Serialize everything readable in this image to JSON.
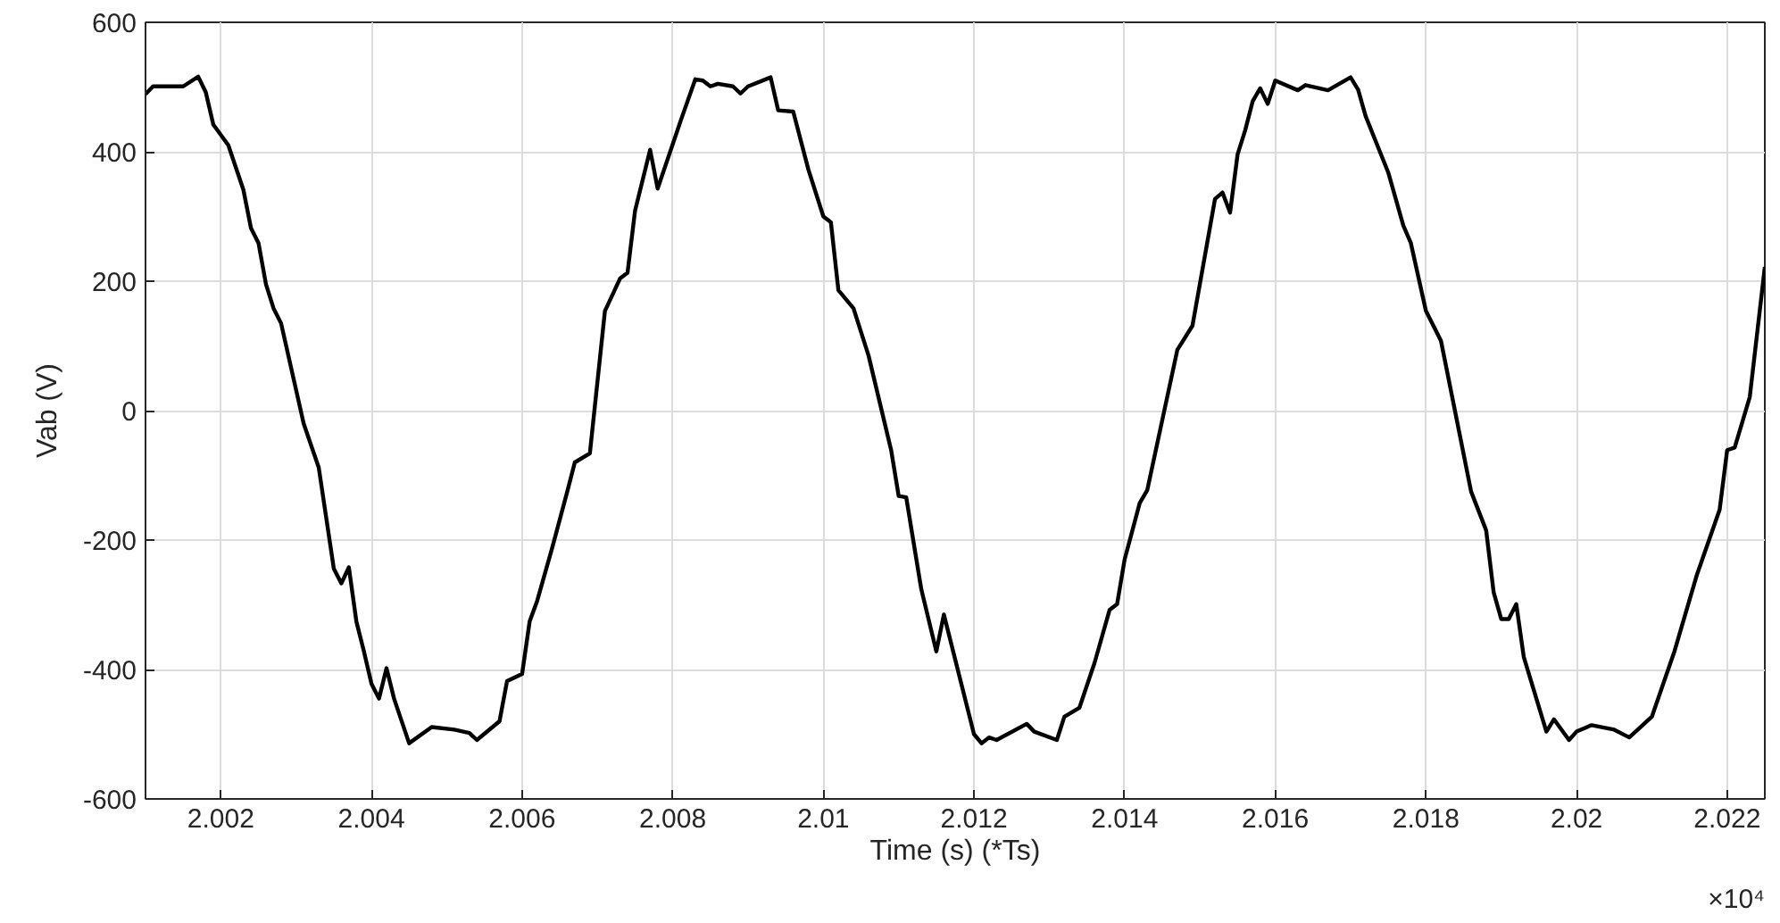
{
  "chart_data": {
    "type": "line",
    "xlabel": "Time (s) (*Ts)",
    "ylabel": "Vab (V)",
    "annotations": [
      "×10⁴"
    ],
    "xlim": [
      2.001,
      2.0225
    ],
    "ylim": [
      -600,
      600
    ],
    "xticks": [
      2.002,
      2.004,
      2.006,
      2.008,
      2.01,
      2.012,
      2.014,
      2.016,
      2.018,
      2.02,
      2.022
    ],
    "yticks": [
      -600,
      -400,
      -200,
      0,
      200,
      400,
      600
    ],
    "grid": true,
    "marker": "none",
    "line_style": "solid",
    "series": [
      {
        "color": "#000000",
        "x": [
          2.001,
          2.0011,
          2.0015,
          2.0017,
          2.0018,
          2.0019,
          2.0021,
          2.0023,
          2.0024,
          2.0025,
          2.0026,
          2.0027,
          2.0028,
          2.0031,
          2.0033,
          2.0035,
          2.0036,
          2.0037,
          2.0038,
          2.0039,
          2.004,
          2.0041,
          2.0042,
          2.0043,
          2.0045,
          2.0048,
          2.0051,
          2.0053,
          2.0054,
          2.0057,
          2.0058,
          2.006,
          2.0061,
          2.0062,
          2.0064,
          2.0066,
          2.0067,
          2.0069,
          2.0071,
          2.0073,
          2.0074,
          2.0075,
          2.0077,
          2.0078,
          2.0081,
          2.0083,
          2.0084,
          2.0085,
          2.0086,
          2.0088,
          2.0089,
          2.009,
          2.0093,
          2.0094,
          2.0096,
          2.0098,
          2.01,
          2.0101,
          2.0102,
          2.0104,
          2.0106,
          2.0109,
          2.011,
          2.0111,
          2.0113,
          2.0115,
          2.0116,
          2.012,
          2.0121,
          2.0122,
          2.0123,
          2.0127,
          2.0128,
          2.0131,
          2.0132,
          2.0134,
          2.0136,
          2.0138,
          2.0139,
          2.014,
          2.0142,
          2.0143,
          2.0147,
          2.0149,
          2.0152,
          2.0153,
          2.0154,
          2.0155,
          2.0156,
          2.0157,
          2.0158,
          2.0159,
          2.016,
          2.0163,
          2.0164,
          2.0167,
          2.017,
          2.0171,
          2.0172,
          2.0175,
          2.0177,
          2.0178,
          2.018,
          2.0182,
          2.0186,
          2.0188,
          2.0189,
          2.019,
          2.0191,
          2.0192,
          2.0193,
          2.0196,
          2.0197,
          2.0199,
          2.02,
          2.0202,
          2.0205,
          2.0207,
          2.021,
          2.0213,
          2.0216,
          2.0219,
          2.022,
          2.0221,
          2.0223,
          2.0225
        ],
        "values": [
          489,
          501,
          501,
          516,
          492,
          442,
          410,
          341,
          282,
          259,
          195,
          158,
          135,
          -20,
          -88,
          -244,
          -267,
          -242,
          -326,
          -372,
          -422,
          -445,
          -398,
          -445,
          -514,
          -489,
          -493,
          -498,
          -509,
          -480,
          -418,
          -407,
          -326,
          -294,
          -212,
          -125,
          -80,
          -66,
          154,
          204,
          213,
          309,
          403,
          343,
          446,
          512,
          510,
          501,
          505,
          501,
          490,
          501,
          515,
          464,
          462,
          373,
          300,
          291,
          186,
          158,
          85,
          -61,
          -132,
          -134,
          -276,
          -372,
          -315,
          -500,
          -514,
          -505,
          -509,
          -484,
          -496,
          -509,
          -473,
          -459,
          -390,
          -308,
          -299,
          -230,
          -143,
          -123,
          94,
          131,
          327,
          337,
          306,
          396,
          433,
          478,
          498,
          474,
          510,
          495,
          503,
          495,
          515,
          496,
          455,
          368,
          286,
          259,
          154,
          108,
          -125,
          -185,
          -281,
          -322,
          -322,
          -299,
          -381,
          -496,
          -477,
          -509,
          -496,
          -486,
          -493,
          -505,
          -473,
          -372,
          -253,
          -153,
          -61,
          -57,
          21,
          222
        ]
      }
    ]
  }
}
